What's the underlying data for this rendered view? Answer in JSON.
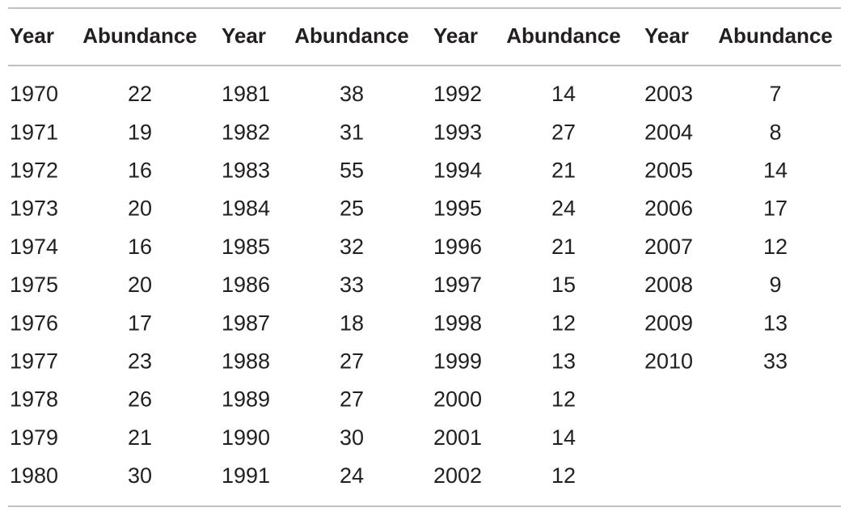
{
  "table": {
    "header": [
      "Year",
      "Abundance",
      "Year",
      "Abundance",
      "Year",
      "Abundance",
      "Year",
      "Abundance"
    ],
    "rows": [
      [
        1970,
        22,
        1981,
        38,
        1992,
        14,
        2003,
        7
      ],
      [
        1971,
        19,
        1982,
        31,
        1993,
        27,
        2004,
        8
      ],
      [
        1972,
        16,
        1983,
        55,
        1994,
        21,
        2005,
        14
      ],
      [
        1973,
        20,
        1984,
        25,
        1995,
        24,
        2006,
        17
      ],
      [
        1974,
        16,
        1985,
        32,
        1996,
        21,
        2007,
        12
      ],
      [
        1975,
        20,
        1986,
        33,
        1997,
        15,
        2008,
        9
      ],
      [
        1976,
        17,
        1987,
        18,
        1998,
        12,
        2009,
        13
      ],
      [
        1977,
        23,
        1988,
        27,
        1999,
        13,
        2010,
        33
      ],
      [
        1978,
        26,
        1989,
        27,
        2000,
        12
      ],
      [
        1979,
        21,
        1990,
        30,
        2001,
        14
      ],
      [
        1980,
        30,
        1991,
        24,
        2002,
        12
      ]
    ]
  }
}
